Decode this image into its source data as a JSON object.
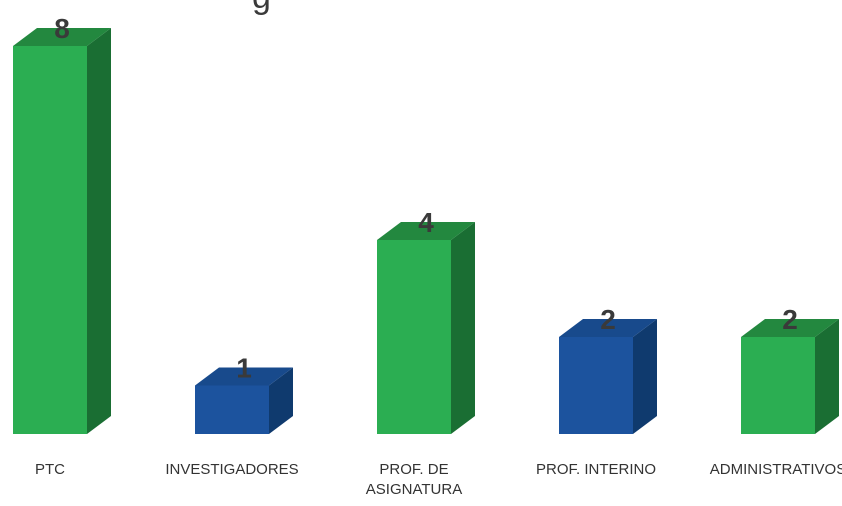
{
  "chart_data": {
    "type": "bar",
    "title_fragment": "g",
    "categories": [
      "PTC",
      "INVESTIGADORES",
      "PROF. DE ASIGNATURA",
      "PROF. INTERINO",
      "ADMINISTRATIVOS"
    ],
    "category_lines": [
      [
        "PTC"
      ],
      [
        "INVESTIGADORES"
      ],
      [
        "PROF. DE",
        "ASIGNATURA"
      ],
      [
        "PROF. INTERINO"
      ],
      [
        "ADMINISTRATIVOS"
      ]
    ],
    "values": [
      8,
      1,
      4,
      2,
      2
    ],
    "value_labels": [
      "8",
      "1",
      "4",
      "2",
      "2"
    ],
    "bar_colors": [
      "green",
      "blue",
      "green",
      "blue",
      "green"
    ],
    "ylim": [
      0,
      8
    ],
    "grid": false,
    "legend": "none",
    "style": "3d-columns"
  },
  "colors": {
    "green": {
      "front": "#2bae52",
      "top": "#23883f",
      "side": "#1a6e33"
    },
    "blue": {
      "front": "#1c539e",
      "top": "#184a8c",
      "side": "#0f3a6e"
    },
    "label_text": "#3a3a3a",
    "axis_text": "#333333"
  }
}
